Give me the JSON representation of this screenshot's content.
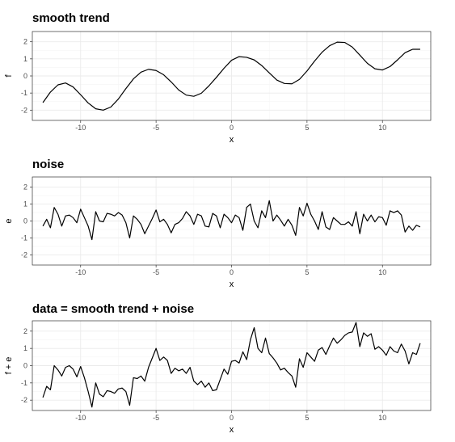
{
  "chart_data": [
    {
      "type": "line",
      "title": "smooth trend",
      "xlabel": "x",
      "ylabel": "f",
      "xlim": [
        -13.2,
        13.2
      ],
      "ylim": [
        -2.6,
        2.6
      ],
      "x_ticks": [
        -10,
        -5,
        0,
        5,
        10
      ],
      "x_tick_labels": [
        "-10",
        "-5",
        "0",
        "5",
        "10"
      ],
      "y_ticks": [
        -2,
        -1,
        0,
        1,
        2
      ],
      "y_tick_labels": [
        "-2",
        "-1",
        "0",
        "1",
        "2"
      ],
      "grid": true,
      "series": [
        {
          "x": [
            -12.5,
            -12.0,
            -11.5,
            -11.0,
            -10.5,
            -10.0,
            -9.5,
            -9.0,
            -8.5,
            -8.0,
            -7.5,
            -7.0,
            -6.5,
            -6.0,
            -5.5,
            -5.0,
            -4.5,
            -4.0,
            -3.5,
            -3.0,
            -2.5,
            -2.0,
            -1.5,
            -1.0,
            -0.5,
            0.0,
            0.5,
            1.0,
            1.5,
            2.0,
            2.5,
            3.0,
            3.5,
            4.0,
            4.5,
            5.0,
            5.5,
            6.0,
            6.5,
            7.0,
            7.5,
            8.0,
            8.5,
            9.0,
            9.5,
            10.0,
            10.5,
            11.0,
            11.5,
            12.0,
            12.5
          ],
          "y": [
            -1.56,
            -0.94,
            -0.52,
            -0.41,
            -0.64,
            -1.1,
            -1.58,
            -1.92,
            -2.0,
            -1.82,
            -1.35,
            -0.74,
            -0.17,
            0.22,
            0.39,
            0.32,
            0.07,
            -0.35,
            -0.82,
            -1.12,
            -1.19,
            -1.01,
            -0.58,
            -0.08,
            0.45,
            0.92,
            1.13,
            1.09,
            0.94,
            0.61,
            0.18,
            -0.24,
            -0.44,
            -0.46,
            -0.2,
            0.29,
            0.87,
            1.39,
            1.77,
            1.98,
            1.96,
            1.69,
            1.22,
            0.74,
            0.42,
            0.35,
            0.55,
            0.94,
            1.36,
            1.56,
            1.56
          ]
        }
      ]
    },
    {
      "type": "line",
      "title": "noise",
      "xlabel": "x",
      "ylabel": "e",
      "xlim": [
        -13.2,
        13.2
      ],
      "ylim": [
        -2.6,
        2.6
      ],
      "x_ticks": [
        -10,
        -5,
        0,
        5,
        10
      ],
      "x_tick_labels": [
        "-10",
        "-5",
        "0",
        "5",
        "10"
      ],
      "y_ticks": [
        -2,
        -1,
        0,
        1,
        2
      ],
      "y_tick_labels": [
        "-2",
        "-1",
        "0",
        "1",
        "2"
      ],
      "grid": true,
      "series": [
        {
          "x": [
            -12.5,
            -12.25,
            -12.0,
            -11.75,
            -11.5,
            -11.25,
            -11.0,
            -10.75,
            -10.5,
            -10.25,
            -10.0,
            -9.75,
            -9.5,
            -9.25,
            -9.0,
            -8.75,
            -8.5,
            -8.25,
            -8.0,
            -7.75,
            -7.5,
            -7.25,
            -7.0,
            -6.75,
            -6.5,
            -6.25,
            -6.0,
            -5.75,
            -5.5,
            -5.25,
            -5.0,
            -4.75,
            -4.5,
            -4.25,
            -4.0,
            -3.75,
            -3.5,
            -3.25,
            -3.0,
            -2.75,
            -2.5,
            -2.25,
            -2.0,
            -1.75,
            -1.5,
            -1.25,
            -1.0,
            -0.75,
            -0.5,
            -0.25,
            0.0,
            0.25,
            0.5,
            0.75,
            1.0,
            1.25,
            1.5,
            1.75,
            2.0,
            2.25,
            2.5,
            2.75,
            3.0,
            3.25,
            3.5,
            3.75,
            4.0,
            4.25,
            4.5,
            4.75,
            5.0,
            5.25,
            5.5,
            5.75,
            6.0,
            6.25,
            6.5,
            6.75,
            7.0,
            7.25,
            7.5,
            7.75,
            8.0,
            8.25,
            8.5,
            8.75,
            9.0,
            9.25,
            9.5,
            9.75,
            10.0,
            10.25,
            10.5,
            10.75,
            11.0,
            11.25,
            11.5,
            11.75,
            12.0,
            12.25,
            12.5
          ],
          "y": [
            -0.3,
            0.1,
            -0.4,
            0.8,
            0.4,
            -0.3,
            0.3,
            0.35,
            0.2,
            -0.1,
            0.7,
            0.2,
            -0.3,
            -1.1,
            0.55,
            0.0,
            -0.05,
            0.45,
            0.4,
            0.3,
            0.5,
            0.35,
            -0.1,
            -1.0,
            0.3,
            0.1,
            -0.2,
            -0.75,
            -0.3,
            0.15,
            0.65,
            -0.05,
            0.1,
            -0.2,
            -0.7,
            -0.2,
            -0.1,
            0.15,
            0.55,
            0.3,
            -0.2,
            0.4,
            0.3,
            -0.3,
            -0.35,
            0.45,
            0.3,
            -0.4,
            0.4,
            0.2,
            -0.1,
            0.35,
            0.2,
            -0.55,
            0.8,
            1.0,
            0.0,
            -0.4,
            0.6,
            0.2,
            1.2,
            0.0,
            0.35,
            0.05,
            -0.3,
            0.1,
            -0.25,
            -0.85,
            0.8,
            0.3,
            1.05,
            0.4,
            0.0,
            -0.5,
            0.55,
            -0.35,
            -0.5,
            0.2,
            0.0,
            -0.2,
            -0.2,
            -0.05,
            -0.3,
            0.55,
            -0.75,
            0.4,
            0.0,
            0.35,
            -0.05,
            0.25,
            0.2,
            -0.25,
            0.6,
            0.5,
            0.6,
            0.35,
            -0.65,
            -0.3,
            -0.55,
            -0.25,
            -0.35
          ]
        }
      ]
    },
    {
      "type": "line",
      "title": "data = smooth trend + noise",
      "xlabel": "x",
      "ylabel": "f + e",
      "xlim": [
        -13.2,
        13.2
      ],
      "ylim": [
        -2.6,
        2.6
      ],
      "x_ticks": [
        -10,
        -5,
        0,
        5,
        10
      ],
      "x_tick_labels": [
        "-10",
        "-5",
        "0",
        "5",
        "10"
      ],
      "y_ticks": [
        -2,
        -1,
        0,
        1,
        2
      ],
      "y_tick_labels": [
        "-2",
        "-1",
        "0",
        "1",
        "2"
      ],
      "grid": true,
      "series": [
        {
          "x": [
            -12.5,
            -12.25,
            -12.0,
            -11.75,
            -11.5,
            -11.25,
            -11.0,
            -10.75,
            -10.5,
            -10.25,
            -10.0,
            -9.75,
            -9.5,
            -9.25,
            -9.0,
            -8.75,
            -8.5,
            -8.25,
            -8.0,
            -7.75,
            -7.5,
            -7.25,
            -7.0,
            -6.75,
            -6.5,
            -6.25,
            -6.0,
            -5.75,
            -5.5,
            -5.25,
            -5.0,
            -4.75,
            -4.5,
            -4.25,
            -4.0,
            -3.75,
            -3.5,
            -3.25,
            -3.0,
            -2.75,
            -2.5,
            -2.25,
            -2.0,
            -1.75,
            -1.5,
            -1.25,
            -1.0,
            -0.75,
            -0.5,
            -0.25,
            0.0,
            0.25,
            0.5,
            0.75,
            1.0,
            1.25,
            1.5,
            1.75,
            2.0,
            2.25,
            2.5,
            2.75,
            3.0,
            3.25,
            3.5,
            3.75,
            4.0,
            4.25,
            4.5,
            4.75,
            5.0,
            5.25,
            5.5,
            5.75,
            6.0,
            6.25,
            6.5,
            6.75,
            7.0,
            7.25,
            7.5,
            7.75,
            8.0,
            8.25,
            8.5,
            8.75,
            9.0,
            9.25,
            9.5,
            9.75,
            10.0,
            10.25,
            10.5,
            10.75,
            11.0,
            11.25,
            11.5,
            11.75,
            12.0,
            12.25,
            12.5
          ],
          "y": [
            -1.85,
            -1.2,
            -1.4,
            0.0,
            -0.25,
            -0.6,
            -0.1,
            0.0,
            -0.2,
            -0.65,
            -0.05,
            -0.7,
            -1.5,
            -2.4,
            -1.0,
            -1.65,
            -1.8,
            -1.45,
            -1.5,
            -1.6,
            -1.35,
            -1.3,
            -1.5,
            -2.3,
            -0.7,
            -0.75,
            -0.6,
            -0.9,
            -0.1,
            0.45,
            1.0,
            0.3,
            0.5,
            0.3,
            -0.45,
            -0.15,
            -0.3,
            -0.2,
            -0.45,
            -0.1,
            -0.9,
            -1.1,
            -0.9,
            -1.25,
            -1.0,
            -1.45,
            -1.4,
            -0.8,
            -0.2,
            -0.5,
            0.25,
            0.3,
            0.15,
            0.8,
            0.35,
            1.5,
            2.2,
            1.0,
            0.75,
            1.6,
            0.7,
            0.45,
            0.15,
            -0.25,
            -0.15,
            -0.4,
            -0.6,
            -1.25,
            0.4,
            -0.1,
            0.75,
            0.5,
            0.25,
            0.9,
            1.05,
            0.65,
            1.15,
            1.6,
            1.3,
            1.5,
            1.75,
            1.9,
            1.95,
            2.5,
            1.1,
            1.9,
            1.7,
            1.85,
            0.95,
            1.1,
            0.9,
            0.6,
            1.1,
            0.85,
            0.75,
            1.25,
            0.85,
            0.1,
            0.75,
            0.65,
            1.3
          ]
        }
      ]
    }
  ]
}
